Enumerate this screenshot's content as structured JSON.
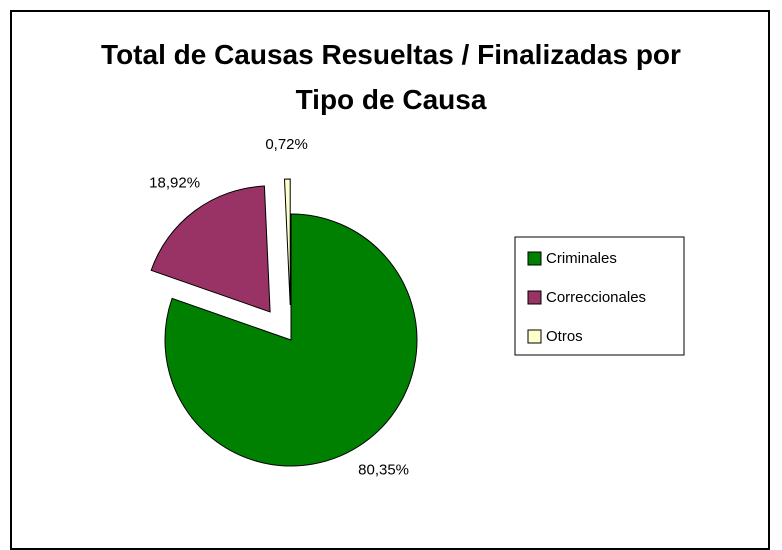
{
  "chart_data": {
    "type": "pie",
    "title": "Total de Causas Resueltas / Finalizadas por Tipo de Causa",
    "categories": [
      "Criminales",
      "Correccionales",
      "Otros"
    ],
    "values": [
      80.35,
      18.92,
      0.72
    ],
    "value_labels": [
      "80,35%",
      "18,92%",
      "0,72%"
    ],
    "colors": [
      "#008000",
      "#993366",
      "#ffffcc"
    ],
    "exploded": [
      false,
      true,
      true
    ],
    "legend": "right"
  }
}
